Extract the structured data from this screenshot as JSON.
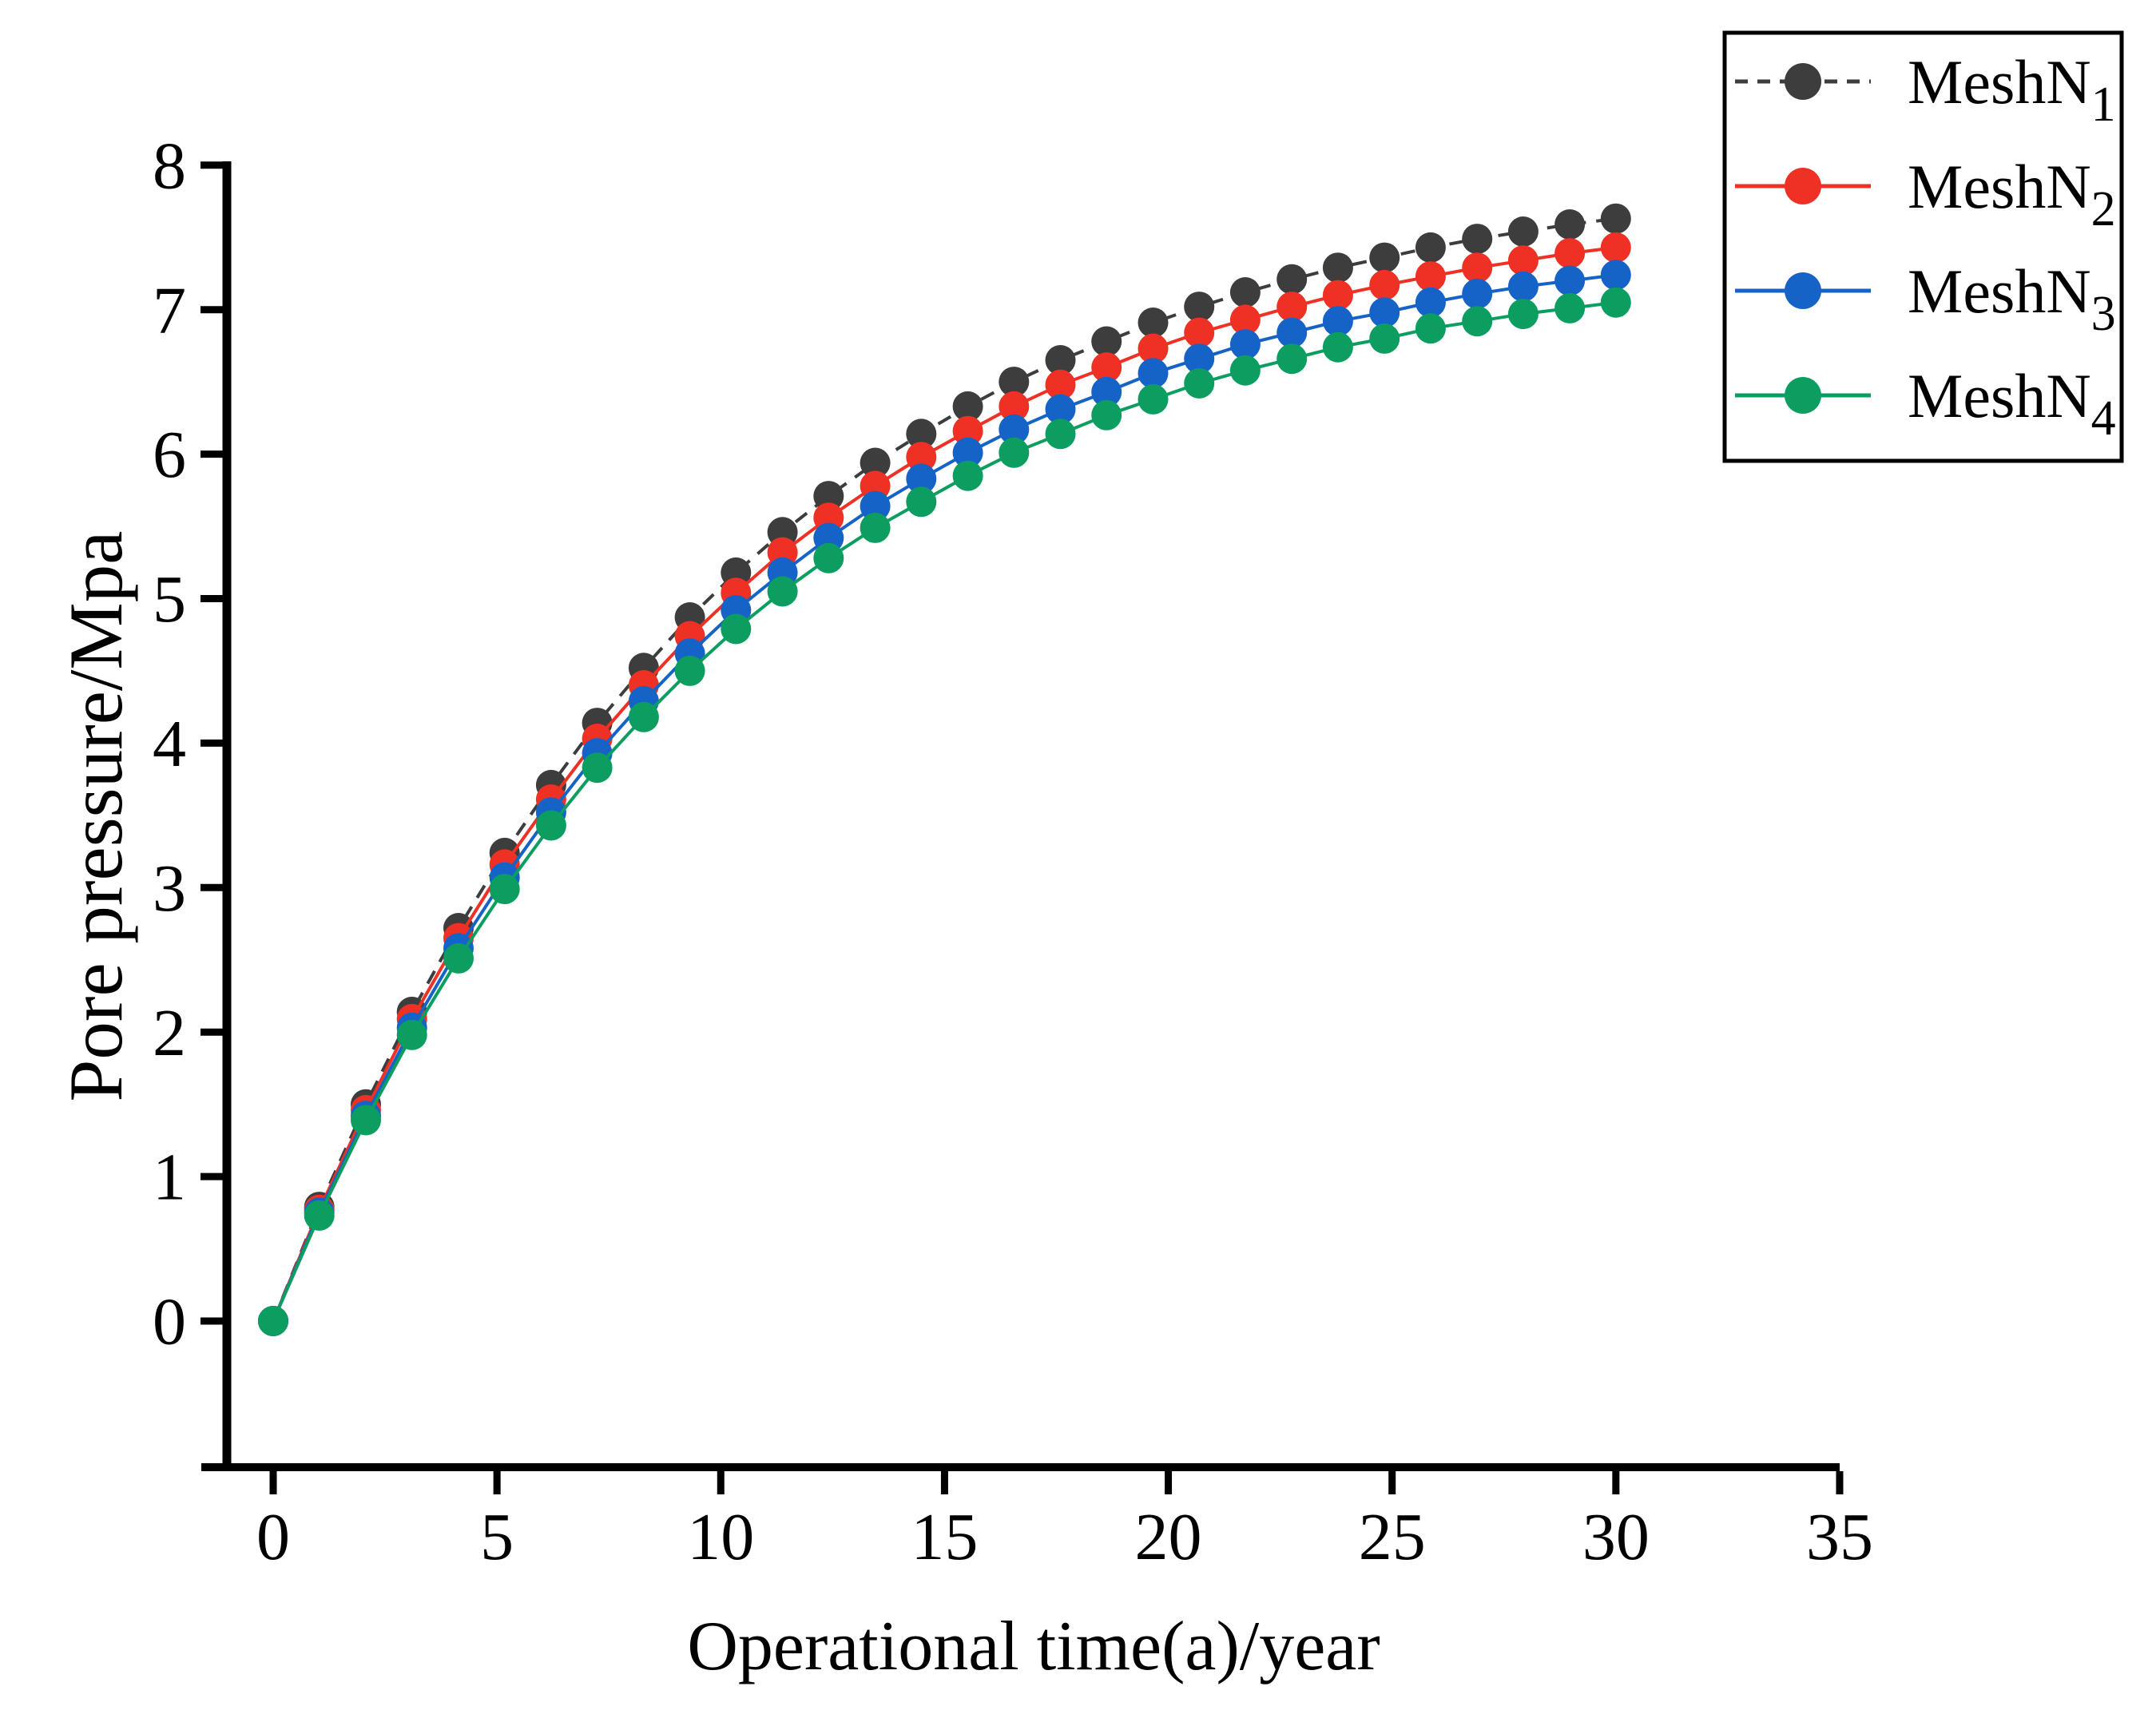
{
  "chart_data": {
    "type": "line",
    "title": "",
    "xlabel": "Operational time(a)/year",
    "ylabel": "Pore pressure/Mpa",
    "xlim": [
      0,
      35
    ],
    "ylim": [
      0,
      8
    ],
    "x_ticks": [
      0,
      5,
      10,
      15,
      20,
      25,
      30,
      35
    ],
    "y_ticks": [
      0,
      1,
      2,
      3,
      4,
      5,
      6,
      7,
      8
    ],
    "grid": false,
    "legend_position": "top-right",
    "x": [
      0,
      1.03,
      2.07,
      3.1,
      4.14,
      5.17,
      6.21,
      7.24,
      8.28,
      9.31,
      10.34,
      11.38,
      12.41,
      13.45,
      14.48,
      15.52,
      16.55,
      17.59,
      18.62,
      19.66,
      20.69,
      21.72,
      22.76,
      23.79,
      24.83,
      25.86,
      26.9,
      27.93,
      28.97,
      30.0
    ],
    "series": [
      {
        "name_base": "MeshN",
        "name_sub": "1",
        "color": "#3d3d3d",
        "line_style": "dashed",
        "marker": "circle",
        "values": [
          0,
          0.79,
          1.5,
          2.14,
          2.72,
          3.24,
          3.71,
          4.14,
          4.52,
          4.87,
          5.18,
          5.46,
          5.71,
          5.94,
          6.14,
          6.33,
          6.5,
          6.65,
          6.78,
          6.91,
          7.02,
          7.12,
          7.21,
          7.29,
          7.36,
          7.43,
          7.49,
          7.54,
          7.59,
          7.63
        ]
      },
      {
        "name_base": "MeshN",
        "name_sub": "2",
        "color": "#ee3124",
        "line_style": "solid",
        "marker": "circle",
        "values": [
          0,
          0.77,
          1.46,
          2.09,
          2.65,
          3.16,
          3.61,
          4.03,
          4.4,
          4.74,
          5.04,
          5.32,
          5.56,
          5.78,
          5.98,
          6.16,
          6.33,
          6.48,
          6.6,
          6.73,
          6.84,
          6.93,
          7.02,
          7.1,
          7.17,
          7.23,
          7.29,
          7.34,
          7.39,
          7.43
        ]
      },
      {
        "name_base": "MeshN",
        "name_sub": "3",
        "color": "#1563c6",
        "line_style": "solid",
        "marker": "circle",
        "values": [
          0,
          0.75,
          1.42,
          2.03,
          2.58,
          3.07,
          3.52,
          3.93,
          4.29,
          4.62,
          4.92,
          5.18,
          5.42,
          5.64,
          5.83,
          6.01,
          6.17,
          6.31,
          6.43,
          6.56,
          6.66,
          6.76,
          6.84,
          6.92,
          6.98,
          7.05,
          7.11,
          7.16,
          7.2,
          7.24
        ]
      },
      {
        "name_base": "MeshN",
        "name_sub": "4",
        "color": "#0b9e60",
        "line_style": "solid",
        "marker": "circle",
        "values": [
          0,
          0.73,
          1.39,
          1.98,
          2.51,
          2.99,
          3.43,
          3.83,
          4.18,
          4.5,
          4.79,
          5.05,
          5.28,
          5.49,
          5.67,
          5.85,
          6.01,
          6.14,
          6.27,
          6.38,
          6.49,
          6.58,
          6.66,
          6.74,
          6.8,
          6.87,
          6.92,
          6.97,
          7.01,
          7.05
        ]
      }
    ]
  }
}
